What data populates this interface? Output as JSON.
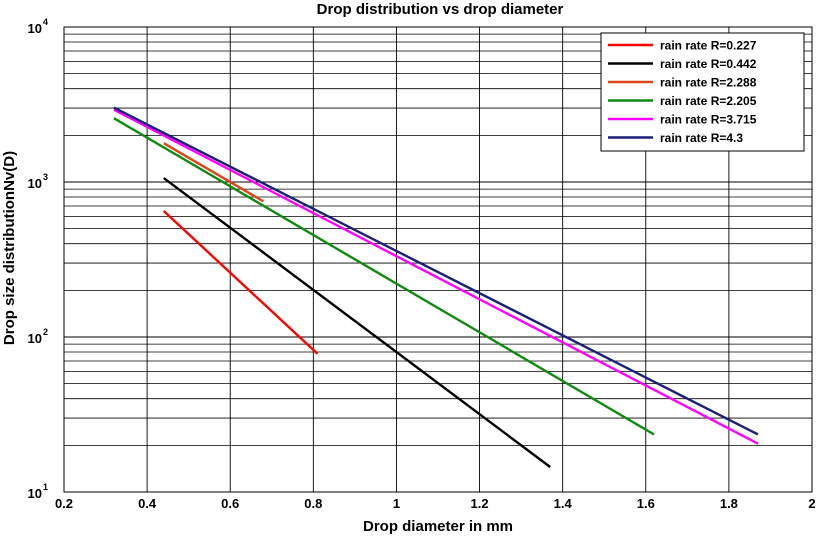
{
  "chart_data": {
    "type": "line",
    "title": "Drop distribution vs drop diameter",
    "xlabel": "Drop diameter in mm",
    "ylabel": "Drop size distributionNv(D)",
    "xlim": [
      0.2,
      2
    ],
    "ylim": [
      10,
      10000
    ],
    "y_scale": "log",
    "x_ticks": [
      "0.2",
      "0.4",
      "0.6",
      "0.8",
      "1",
      "1.2",
      "1.4",
      "1.6",
      "1.8",
      "2"
    ],
    "y_ticks": [
      {
        "base": "10",
        "exp": "1"
      },
      {
        "base": "10",
        "exp": "2"
      },
      {
        "base": "10",
        "exp": "3"
      },
      {
        "base": "10",
        "exp": "4"
      }
    ],
    "grid": true,
    "legend_position": "top-right",
    "series": [
      {
        "name": "rain rate R=0.227",
        "color": "#ff0000",
        "x": [
          0.44,
          0.81
        ],
        "y": [
          650,
          78
        ]
      },
      {
        "name": "rain rate R=0.442",
        "color": "#000000",
        "x": [
          0.44,
          1.37
        ],
        "y": [
          1060,
          14.5
        ]
      },
      {
        "name": "rain rate R=2.288",
        "color": "#d9461a",
        "x": [
          0.44,
          0.68
        ],
        "y": [
          1780,
          750
        ]
      },
      {
        "name": "rain rate R=2.205",
        "color": "#0f8a0f",
        "x": [
          0.32,
          1.62
        ],
        "y": [
          2580,
          23.5
        ]
      },
      {
        "name": "rain rate R=3.715",
        "color": "#ff00ff",
        "x": [
          0.32,
          1.87
        ],
        "y": [
          2930,
          20.5
        ]
      },
      {
        "name": "rain rate R=4.3",
        "color": "#1a1f78",
        "x": [
          0.32,
          1.87
        ],
        "y": [
          3020,
          23.5
        ]
      }
    ]
  }
}
